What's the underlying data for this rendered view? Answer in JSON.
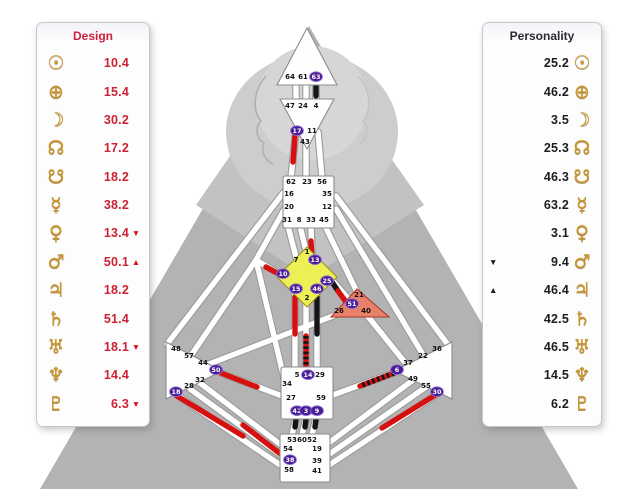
{
  "design_panel": {
    "title": "Design",
    "rows": [
      {
        "planet": "sun",
        "glyph": "☉",
        "value": "10.4",
        "arrow": ""
      },
      {
        "planet": "earth",
        "glyph": "⊕",
        "value": "15.4",
        "arrow": ""
      },
      {
        "planet": "moon",
        "glyph": "☽",
        "value": "30.2",
        "arrow": ""
      },
      {
        "planet": "north-node",
        "glyph": "☊",
        "value": "17.2",
        "arrow": ""
      },
      {
        "planet": "south-node",
        "glyph": "☋",
        "value": "18.2",
        "arrow": ""
      },
      {
        "planet": "mercury",
        "glyph": "☿",
        "value": "38.2",
        "arrow": ""
      },
      {
        "planet": "venus",
        "glyph": "♀",
        "value": "13.4",
        "arrow": "▼"
      },
      {
        "planet": "mars",
        "glyph": "♂",
        "value": "50.1",
        "arrow": "▲"
      },
      {
        "planet": "jupiter",
        "glyph": "♃",
        "value": "18.2",
        "arrow": ""
      },
      {
        "planet": "saturn",
        "glyph": "♄",
        "value": "51.4",
        "arrow": ""
      },
      {
        "planet": "uranus",
        "glyph": "♅",
        "value": "18.1",
        "arrow": "▼"
      },
      {
        "planet": "neptune",
        "glyph": "♆",
        "value": "14.4",
        "arrow": ""
      },
      {
        "planet": "pluto",
        "glyph": "♇",
        "value": "6.3",
        "arrow": "▼"
      }
    ]
  },
  "personality_panel": {
    "title": "Personality",
    "rows": [
      {
        "planet": "sun",
        "glyph": "☉",
        "value": "25.2",
        "arrow": ""
      },
      {
        "planet": "earth",
        "glyph": "⊕",
        "value": "46.2",
        "arrow": ""
      },
      {
        "planet": "moon",
        "glyph": "☽",
        "value": "3.5",
        "arrow": ""
      },
      {
        "planet": "north-node",
        "glyph": "☊",
        "value": "25.3",
        "arrow": ""
      },
      {
        "planet": "south-node",
        "glyph": "☋",
        "value": "46.3",
        "arrow": ""
      },
      {
        "planet": "mercury",
        "glyph": "☿",
        "value": "63.2",
        "arrow": ""
      },
      {
        "planet": "venus",
        "glyph": "♀",
        "value": "3.1",
        "arrow": ""
      },
      {
        "planet": "mars",
        "glyph": "♂",
        "value": "9.4",
        "arrow": "▼"
      },
      {
        "planet": "jupiter",
        "glyph": "♃",
        "value": "46.4",
        "arrow": "▲"
      },
      {
        "planet": "saturn",
        "glyph": "♄",
        "value": "42.5",
        "arrow": ""
      },
      {
        "planet": "uranus",
        "glyph": "♅",
        "value": "46.5",
        "arrow": ""
      },
      {
        "planet": "neptune",
        "glyph": "♆",
        "value": "14.5",
        "arrow": ""
      },
      {
        "planet": "pluto",
        "glyph": "♇",
        "value": "6.2",
        "arrow": ""
      }
    ]
  },
  "bodygraph": {
    "centers": [
      {
        "name": "head",
        "gates": [
          {
            "n": "64"
          },
          {
            "n": "61"
          },
          {
            "n": "63",
            "c": true
          }
        ]
      },
      {
        "name": "ajna",
        "gates": [
          {
            "n": "47"
          },
          {
            "n": "24"
          },
          {
            "n": "4"
          },
          {
            "n": "17",
            "c": true
          },
          {
            "n": "11"
          },
          {
            "n": "43"
          }
        ]
      },
      {
        "name": "throat",
        "gates": [
          {
            "n": "62"
          },
          {
            "n": "23"
          },
          {
            "n": "56"
          },
          {
            "n": "16"
          },
          {
            "n": "35"
          },
          {
            "n": "20"
          },
          {
            "n": "12"
          },
          {
            "n": "31"
          },
          {
            "n": "8"
          },
          {
            "n": "33"
          },
          {
            "n": "45"
          }
        ]
      },
      {
        "name": "g",
        "gates": [
          {
            "n": "1"
          },
          {
            "n": "7"
          },
          {
            "n": "13",
            "c": true
          },
          {
            "n": "10",
            "c": true
          },
          {
            "n": "25",
            "c": true
          },
          {
            "n": "15",
            "c": true
          },
          {
            "n": "46",
            "c": true
          },
          {
            "n": "2"
          }
        ]
      },
      {
        "name": "heart",
        "gates": [
          {
            "n": "21"
          },
          {
            "n": "51",
            "c": true
          },
          {
            "n": "26"
          },
          {
            "n": "40"
          }
        ]
      },
      {
        "name": "spleen",
        "gates": [
          {
            "n": "48"
          },
          {
            "n": "57"
          },
          {
            "n": "44"
          },
          {
            "n": "50",
            "c": true
          },
          {
            "n": "32"
          },
          {
            "n": "28"
          },
          {
            "n": "18",
            "c": true
          }
        ]
      },
      {
        "name": "solar-plexus",
        "gates": [
          {
            "n": "36"
          },
          {
            "n": "22"
          },
          {
            "n": "37"
          },
          {
            "n": "6",
            "c": true
          },
          {
            "n": "49"
          },
          {
            "n": "55"
          },
          {
            "n": "30",
            "c": true
          }
        ]
      },
      {
        "name": "sacral",
        "gates": [
          {
            "n": "5"
          },
          {
            "n": "14",
            "c": true
          },
          {
            "n": "29"
          },
          {
            "n": "34"
          },
          {
            "n": "27"
          },
          {
            "n": "59"
          },
          {
            "n": "42",
            "c": true
          },
          {
            "n": "3",
            "c": true
          },
          {
            "n": "9",
            "c": true
          }
        ]
      },
      {
        "name": "root",
        "gates": [
          {
            "n": "53"
          },
          {
            "n": "60"
          },
          {
            "n": "52"
          },
          {
            "n": "54"
          },
          {
            "n": "19"
          },
          {
            "n": "38",
            "c": true
          },
          {
            "n": "39"
          },
          {
            "n": "58"
          },
          {
            "n": "41"
          }
        ]
      }
    ],
    "channel_states": [
      {
        "id": "63-4",
        "color": "black"
      },
      {
        "id": "17-62",
        "color": "red"
      },
      {
        "id": "13-33",
        "color": "red"
      },
      {
        "id": "10-20",
        "color": "red"
      },
      {
        "id": "25-51-black",
        "color": "black"
      },
      {
        "id": "25-51-red",
        "color": "red"
      },
      {
        "id": "15-5",
        "color": "red"
      },
      {
        "id": "46-29",
        "color": "black"
      },
      {
        "id": "2-14",
        "color": "striped"
      },
      {
        "id": "42-53",
        "color": "black"
      },
      {
        "id": "3-60",
        "color": "black"
      },
      {
        "id": "9-52",
        "color": "black"
      },
      {
        "id": "50-27",
        "color": "red"
      },
      {
        "id": "18-58",
        "color": "red"
      },
      {
        "id": "28-38",
        "color": "red"
      },
      {
        "id": "6-59",
        "color": "striped"
      },
      {
        "id": "30-41",
        "color": "red"
      }
    ],
    "colors": {
      "design_red": "#d60f0f",
      "personality_black": "#151515",
      "g_center_fill": "#edf054",
      "heart_center_fill": "#e8806a",
      "circle_fill": "#4a1d96",
      "silhouette_gray": "#b3b3b3"
    }
  }
}
